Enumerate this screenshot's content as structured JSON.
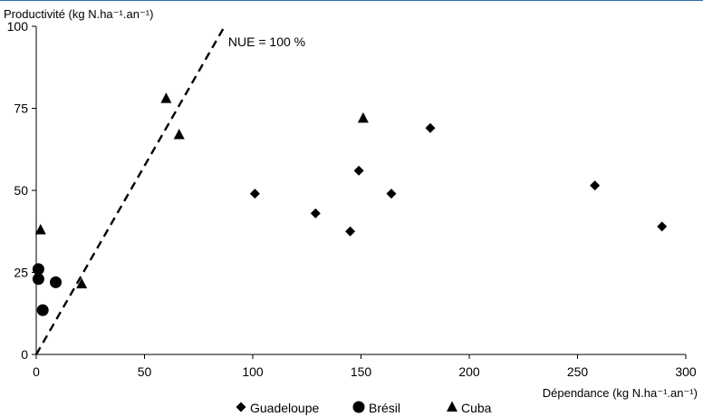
{
  "chart_data": {
    "type": "scatter",
    "ylabel": "Productivité (kg N.ha⁻¹.an⁻¹)",
    "xlabel": "Dépendance (kg N.ha⁻¹.an⁻¹)",
    "xlim": [
      0,
      300
    ],
    "ylim": [
      0,
      100
    ],
    "xticks": [
      "0",
      "50",
      "100",
      "150",
      "200",
      "250",
      "300"
    ],
    "yticks": [
      "0",
      "25",
      "50",
      "75",
      "100"
    ],
    "grid": false,
    "legend_position": "bottom",
    "reference_line": {
      "label": "NUE = 100 %",
      "from": [
        0,
        0
      ],
      "to": [
        87,
        100
      ]
    },
    "series": [
      {
        "name": "Guadeloupe",
        "marker": "diamond",
        "points": [
          [
            101,
            49
          ],
          [
            129,
            43
          ],
          [
            145,
            37.5
          ],
          [
            149,
            56
          ],
          [
            164,
            49
          ],
          [
            182,
            69
          ],
          [
            258,
            51.5
          ],
          [
            289,
            39
          ]
        ]
      },
      {
        "name": "Brésil",
        "marker": "circle",
        "points": [
          [
            1,
            26
          ],
          [
            1,
            23
          ],
          [
            3,
            13.5
          ],
          [
            9,
            22
          ]
        ]
      },
      {
        "name": "Cuba",
        "marker": "triangle",
        "points": [
          [
            2,
            38
          ],
          [
            21,
            21.5
          ],
          [
            60,
            78
          ],
          [
            66,
            67
          ],
          [
            151,
            72
          ]
        ]
      }
    ]
  }
}
